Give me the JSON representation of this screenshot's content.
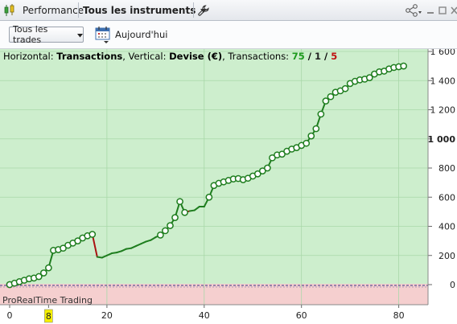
{
  "titlebar": {
    "tab_label": "Performance",
    "instruments_label": "Tous les instruments",
    "icons": [
      "candlestick-icon",
      "wrench-icon",
      "share-icon",
      "minimize-icon",
      "maximize-icon",
      "close-icon"
    ]
  },
  "toolbar": {
    "filter_value": "Tous les trades",
    "date_label": "Aujourd'hui"
  },
  "caption": {
    "h_prefix": "Horizontal: ",
    "h_value": "Transactions",
    "v_prefix": ", Vertical: ",
    "v_value": "Devise (€)",
    "t_prefix": ", Transactions: ",
    "total": "75",
    "sep1": " / ",
    "even": "1",
    "sep2": " / ",
    "losses": "5"
  },
  "watermark": "ProRealTime Trading",
  "colors": {
    "profit_zone": "#cdeecd",
    "loss_zone": "#f5cfcf",
    "line_up": "#1e7d1e",
    "line_down": "#aa1111",
    "count_green": "#1e9a1e",
    "count_red": "#c01010",
    "highlight": "#f5f000"
  },
  "chart_data": {
    "type": "line",
    "x": [
      0,
      1,
      2,
      3,
      4,
      5,
      6,
      7,
      8,
      9,
      10,
      11,
      12,
      13,
      14,
      15,
      16,
      17,
      18,
      19,
      20,
      21,
      22,
      23,
      24,
      25,
      26,
      27,
      28,
      29,
      30,
      31,
      32,
      33,
      34,
      35,
      36,
      37,
      38,
      39,
      40,
      41,
      42,
      43,
      44,
      45,
      46,
      47,
      48,
      49,
      50,
      51,
      52,
      53,
      54,
      55,
      56,
      57,
      58,
      59,
      60,
      61,
      62,
      63,
      64,
      65,
      66,
      67,
      68,
      69,
      70,
      71,
      72,
      73,
      74,
      75,
      76,
      77,
      78,
      79,
      80,
      81
    ],
    "y": [
      0,
      10,
      20,
      30,
      40,
      45,
      55,
      80,
      115,
      235,
      240,
      250,
      270,
      285,
      300,
      320,
      335,
      345,
      190,
      185,
      200,
      215,
      220,
      230,
      245,
      250,
      265,
      280,
      295,
      305,
      325,
      340,
      370,
      405,
      460,
      570,
      495,
      505,
      510,
      535,
      535,
      600,
      680,
      695,
      705,
      715,
      725,
      728,
      720,
      730,
      745,
      760,
      780,
      800,
      870,
      890,
      895,
      915,
      930,
      940,
      955,
      970,
      1020,
      1070,
      1170,
      1260,
      1290,
      1320,
      1330,
      1345,
      1380,
      1395,
      1405,
      1410,
      1420,
      1445,
      1460,
      1465,
      1480,
      1490,
      1495,
      1500
    ],
    "markers": [
      0,
      1,
      2,
      3,
      4,
      5,
      6,
      7,
      8,
      9,
      10,
      11,
      12,
      13,
      14,
      15,
      16,
      17,
      31,
      32,
      33,
      34,
      35,
      36,
      41,
      42,
      43,
      44,
      45,
      46,
      47,
      48,
      49,
      50,
      51,
      52,
      53,
      54,
      55,
      56,
      57,
      58,
      59,
      60,
      61,
      62,
      63,
      64,
      65,
      66,
      67,
      68,
      69,
      70,
      71,
      72,
      73,
      74,
      75,
      76,
      77,
      78,
      79,
      80,
      81
    ],
    "losing_segments": [
      [
        17,
        18
      ],
      [
        36,
        37
      ]
    ],
    "x_ticks": [
      "0",
      "20",
      "40",
      "60",
      "80"
    ],
    "x_tick_values": [
      0,
      20,
      40,
      60,
      80
    ],
    "highlight_tick": "8",
    "highlight_tick_value": 8,
    "y_ticks": [
      "0",
      "200",
      "400",
      "600",
      "800",
      "1 000",
      "1 200",
      "1 400",
      "1 600"
    ],
    "y_tick_values": [
      0,
      200,
      400,
      600,
      800,
      1000,
      1200,
      1400,
      1600
    ],
    "y_bold_tick": "1 000",
    "xlim": [
      0,
      86
    ],
    "ylim": [
      -140,
      1650
    ],
    "grid": true
  }
}
